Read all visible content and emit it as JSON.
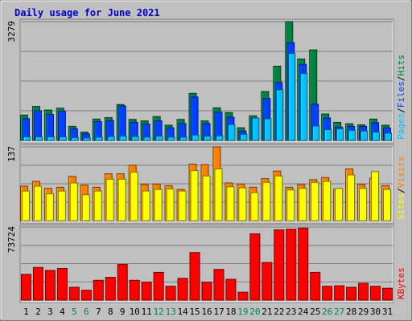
{
  "chart_data": {
    "type": "bar",
    "title": "Daily usage for June 2021",
    "categories": [
      "1",
      "2",
      "3",
      "4",
      "5",
      "6",
      "7",
      "8",
      "9",
      "10",
      "11",
      "12",
      "13",
      "14",
      "15",
      "16",
      "17",
      "18",
      "19",
      "20",
      "21",
      "22",
      "23",
      "24",
      "25",
      "26",
      "27",
      "28",
      "29",
      "30",
      "31"
    ],
    "weekend_days": [
      "5",
      "6",
      "12",
      "13",
      "19",
      "20",
      "26",
      "27"
    ],
    "panels": [
      {
        "id": "hits",
        "max_label": "3279",
        "ymax": 3279,
        "legend": [
          "Pages",
          "/",
          "Files",
          "/",
          "Hits"
        ],
        "series": [
          {
            "name": "Hits",
            "color": "#008040",
            "values": [
              700,
              940,
              840,
              890,
              390,
              230,
              590,
              630,
              990,
              580,
              540,
              660,
              420,
              580,
              1300,
              540,
              900,
              770,
              350,
              680,
              1350,
              2050,
              3279,
              2250,
              2500,
              730,
              500,
              460,
              430,
              590,
              420
            ]
          },
          {
            "name": "Files",
            "color": "#0040ff",
            "values": [
              600,
              820,
              720,
              810,
              320,
              180,
              520,
              550,
              950,
              500,
              450,
              540,
              350,
              470,
              1200,
              470,
              780,
              640,
              260,
              600,
              1160,
              1600,
              2700,
              2100,
              1000,
              620,
              370,
              390,
              390,
              490,
              340
            ]
          },
          {
            "name": "Pages",
            "color": "#00c0ff",
            "values": [
              100,
              100,
              100,
              100,
              80,
              70,
              90,
              110,
              120,
              110,
              90,
              120,
              90,
              90,
              150,
              120,
              130,
              440,
              170,
              620,
              600,
              1400,
              2400,
              1850,
              400,
              300,
              320,
              280,
              260,
              230,
              200
            ]
          }
        ]
      },
      {
        "id": "visits",
        "max_label": "137",
        "ymax": 137,
        "legend": [
          "Sites",
          "/",
          "Visits"
        ],
        "series": [
          {
            "name": "Visits",
            "color": "#ff8000",
            "values": [
              64,
              73,
              60,
              62,
              82,
              66,
              62,
              87,
              87,
              103,
              67,
              68,
              65,
              58,
              105,
              104,
              137,
              70,
              68,
              62,
              78,
              92,
              62,
              67,
              76,
              80,
              58,
              96,
              67,
              79,
              65
            ]
          },
          {
            "name": "Sites",
            "color": "#ffff00",
            "values": [
              55,
              64,
              50,
              55,
              70,
              48,
              55,
              77,
              77,
              90,
              55,
              58,
              59,
              55,
              93,
              83,
              96,
              63,
              61,
              52,
              71,
              83,
              57,
              60,
              71,
              73,
              60,
              85,
              60,
              91,
              58
            ]
          }
        ]
      },
      {
        "id": "kbytes",
        "max_label": "73724",
        "ymax": 73724,
        "legend": [
          "KBytes"
        ],
        "series": [
          {
            "name": "KBytes",
            "color": "#ff0000",
            "values": [
              26000,
              33000,
              30000,
              32000,
              13000,
              10000,
              20000,
              23000,
              36000,
              20000,
              18000,
              28000,
              14000,
              22000,
              48000,
              18000,
              31000,
              21000,
              8000,
              67000,
              38000,
              71000,
              71600,
              72700,
              28000,
              14000,
              14500,
              13000,
              17000,
              14000,
              12000
            ]
          }
        ]
      }
    ]
  }
}
